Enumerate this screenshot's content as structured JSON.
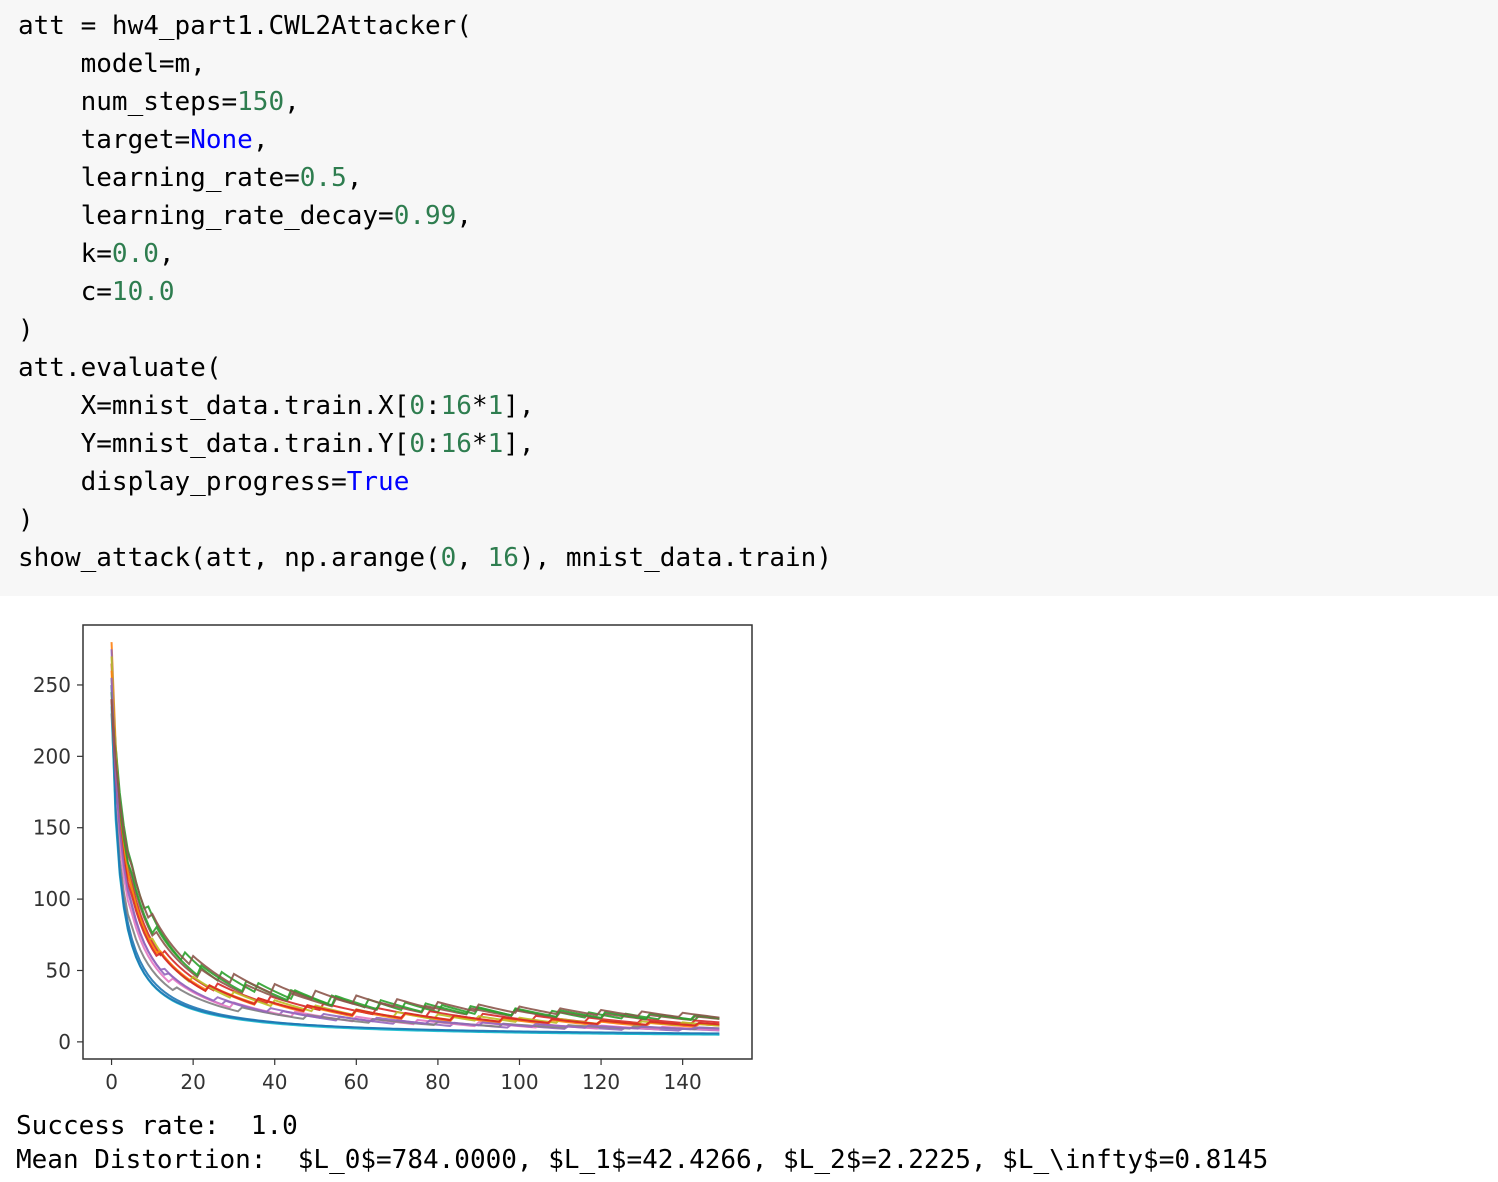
{
  "code_cell": {
    "lines": [
      [
        {
          "t": "att = hw4_part1.CWL2Attacker(",
          "c": ""
        }
      ],
      [
        {
          "t": "    model=m,",
          "c": ""
        }
      ],
      [
        {
          "t": "    num_steps=",
          "c": ""
        },
        {
          "t": "150",
          "c": "num"
        },
        {
          "t": ",",
          "c": ""
        }
      ],
      [
        {
          "t": "    target=",
          "c": ""
        },
        {
          "t": "None",
          "c": "kw"
        },
        {
          "t": ",",
          "c": ""
        }
      ],
      [
        {
          "t": "    learning_rate=",
          "c": ""
        },
        {
          "t": "0.5",
          "c": "num"
        },
        {
          "t": ",",
          "c": ""
        }
      ],
      [
        {
          "t": "    learning_rate_decay=",
          "c": ""
        },
        {
          "t": "0.99",
          "c": "num"
        },
        {
          "t": ",",
          "c": ""
        }
      ],
      [
        {
          "t": "    k=",
          "c": ""
        },
        {
          "t": "0.0",
          "c": "num"
        },
        {
          "t": ",",
          "c": ""
        }
      ],
      [
        {
          "t": "    c=",
          "c": ""
        },
        {
          "t": "10.0",
          "c": "num"
        }
      ],
      [
        {
          "t": ")",
          "c": ""
        }
      ],
      [
        {
          "t": "att.evaluate(",
          "c": ""
        }
      ],
      [
        {
          "t": "    X=mnist_data.train.X[",
          "c": ""
        },
        {
          "t": "0",
          "c": "num"
        },
        {
          "t": ":",
          "c": ""
        },
        {
          "t": "16",
          "c": "num"
        },
        {
          "t": "*",
          "c": ""
        },
        {
          "t": "1",
          "c": "num"
        },
        {
          "t": "],",
          "c": ""
        }
      ],
      [
        {
          "t": "    Y=mnist_data.train.Y[",
          "c": ""
        },
        {
          "t": "0",
          "c": "num"
        },
        {
          "t": ":",
          "c": ""
        },
        {
          "t": "16",
          "c": "num"
        },
        {
          "t": "*",
          "c": ""
        },
        {
          "t": "1",
          "c": "num"
        },
        {
          "t": "],",
          "c": ""
        }
      ],
      [
        {
          "t": "    display_progress=",
          "c": ""
        },
        {
          "t": "True",
          "c": "kw"
        }
      ],
      [
        {
          "t": ")",
          "c": ""
        }
      ],
      [
        {
          "t": "show_attack(att, np.arange(",
          "c": ""
        },
        {
          "t": "0",
          "c": "num"
        },
        {
          "t": ", ",
          "c": ""
        },
        {
          "t": "16",
          "c": "num"
        },
        {
          "t": "), mnist_data.train)",
          "c": ""
        }
      ]
    ]
  },
  "colors": {
    "cell_background": "#f7f7f7",
    "number": "#2e7d4f",
    "keyword": "#0000ff"
  },
  "chart_data": {
    "type": "line",
    "title": "",
    "xlabel": "",
    "ylabel": "",
    "xlim": [
      -7,
      157
    ],
    "ylim": [
      -12,
      292
    ],
    "grid": false,
    "legend": "none",
    "x_ticks": [
      0,
      20,
      40,
      60,
      80,
      100,
      120,
      140
    ],
    "y_ticks": [
      0,
      50,
      100,
      150,
      200,
      250
    ],
    "x_tick_labels": [
      "0",
      "20",
      "40",
      "60",
      "80",
      "100",
      "120",
      "140"
    ],
    "y_tick_labels": [
      "0",
      "50",
      "100",
      "150",
      "200",
      "250"
    ],
    "num_steps": 150,
    "series": [
      {
        "color": "#1f77b4",
        "start": 240,
        "floor": 2,
        "decay": 0.3,
        "sawtooth_period": 0,
        "sawtooth_amp": 0
      },
      {
        "color": "#ff7f0e",
        "start": 280,
        "floor": 5,
        "decay": 0.22,
        "sawtooth_period": 12,
        "sawtooth_amp": 6
      },
      {
        "color": "#2ca02c",
        "start": 255,
        "floor": 8,
        "decay": 0.15,
        "sawtooth_period": 9,
        "sawtooth_amp": 9
      },
      {
        "color": "#d62728",
        "start": 265,
        "floor": 7,
        "decay": 0.2,
        "sawtooth_period": 13,
        "sawtooth_amp": 7
      },
      {
        "color": "#9467bd",
        "start": 275,
        "floor": 3,
        "decay": 0.25,
        "sawtooth_period": 14,
        "sawtooth_amp": 4
      },
      {
        "color": "#8c564b",
        "start": 250,
        "floor": 9,
        "decay": 0.17,
        "sawtooth_period": 11,
        "sawtooth_amp": 8
      },
      {
        "color": "#e377c2",
        "start": 245,
        "floor": 4,
        "decay": 0.24,
        "sawtooth_period": 15,
        "sawtooth_amp": 5
      },
      {
        "color": "#7f7f7f",
        "start": 230,
        "floor": 5,
        "decay": 0.26,
        "sawtooth_period": 16,
        "sawtooth_amp": 4
      },
      {
        "color": "#bcbd22",
        "start": 270,
        "floor": 6,
        "decay": 0.21,
        "sawtooth_period": 10,
        "sawtooth_amp": 6
      },
      {
        "color": "#17becf",
        "start": 235,
        "floor": 2,
        "decay": 0.32,
        "sawtooth_period": 0,
        "sawtooth_amp": 0
      },
      {
        "color": "#1f77b4",
        "start": 250,
        "floor": 3,
        "decay": 0.35,
        "sawtooth_period": 0,
        "sawtooth_amp": 0
      },
      {
        "color": "#ff7f0e",
        "start": 260,
        "floor": 6,
        "decay": 0.2,
        "sawtooth_period": 12,
        "sawtooth_amp": 5
      },
      {
        "color": "#2ca02c",
        "start": 245,
        "floor": 9,
        "decay": 0.16,
        "sawtooth_period": 11,
        "sawtooth_amp": 10
      },
      {
        "color": "#d62728",
        "start": 240,
        "floor": 6,
        "decay": 0.19,
        "sawtooth_period": 12,
        "sawtooth_amp": 6
      },
      {
        "color": "#9467bd",
        "start": 255,
        "floor": 4,
        "decay": 0.23,
        "sawtooth_period": 13,
        "sawtooth_amp": 4
      },
      {
        "color": "#8c564b",
        "start": 240,
        "floor": 10,
        "decay": 0.14,
        "sawtooth_period": 10,
        "sawtooth_amp": 9
      }
    ]
  },
  "output": {
    "success_rate": "Success rate:  1.0",
    "mean_distortion": "Mean Distortion:  $L_0$=784.0000, $L_1$=42.4266, $L_2$=2.2225, $L_\\infty$=0.8145"
  }
}
